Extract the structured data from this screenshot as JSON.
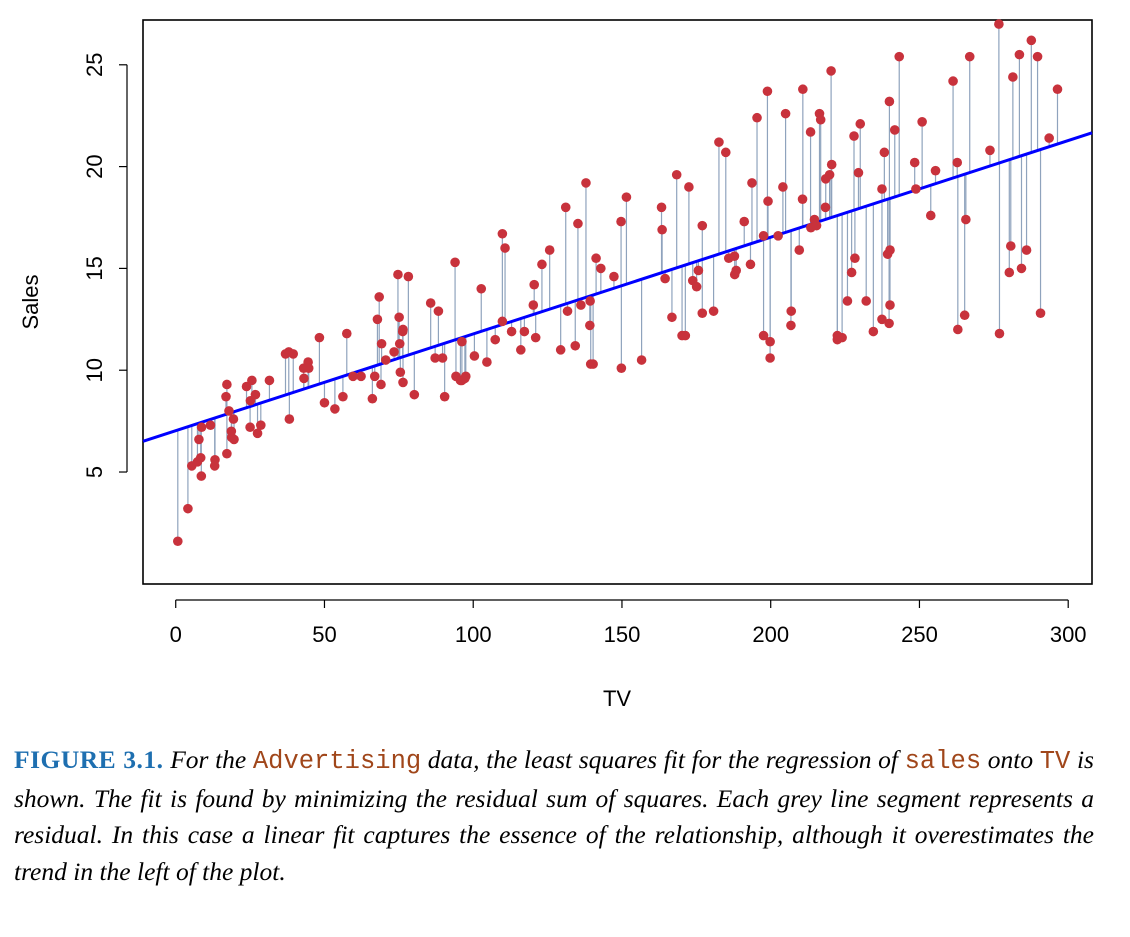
{
  "chart_data": {
    "type": "scatter",
    "xlabel": "TV",
    "ylabel": "Sales",
    "xlim": [
      -11,
      308
    ],
    "ylim": [
      -0.5,
      27.2
    ],
    "xticks": [
      0,
      50,
      100,
      150,
      200,
      250,
      300
    ],
    "yticks": [
      5,
      10,
      15,
      20,
      25
    ],
    "fit_line": {
      "intercept": 7.03,
      "slope": 0.0475
    },
    "colors": {
      "points": "#c8323c",
      "fit_line": "#0000ff",
      "residuals": "#8fa3bd"
    },
    "points": [
      [
        0.7,
        1.6
      ],
      [
        4.1,
        3.2
      ],
      [
        5.4,
        5.3
      ],
      [
        7.3,
        5.5
      ],
      [
        7.8,
        6.6
      ],
      [
        8.4,
        5.7
      ],
      [
        8.6,
        4.8
      ],
      [
        8.7,
        7.2
      ],
      [
        11.7,
        7.3
      ],
      [
        13.1,
        5.3
      ],
      [
        13.2,
        5.6
      ],
      [
        16.9,
        8.7
      ],
      [
        17.2,
        5.9
      ],
      [
        17.2,
        9.3
      ],
      [
        17.9,
        8.0
      ],
      [
        18.7,
        7.0
      ],
      [
        18.8,
        6.7
      ],
      [
        19.4,
        7.6
      ],
      [
        19.6,
        6.6
      ],
      [
        23.8,
        9.2
      ],
      [
        25.0,
        7.2
      ],
      [
        25.1,
        8.5
      ],
      [
        25.6,
        9.5
      ],
      [
        26.8,
        8.8
      ],
      [
        27.5,
        6.9
      ],
      [
        28.6,
        7.3
      ],
      [
        31.5,
        9.5
      ],
      [
        36.9,
        10.8
      ],
      [
        38.0,
        10.9
      ],
      [
        38.2,
        7.6
      ],
      [
        39.5,
        10.8
      ],
      [
        43.0,
        10.1
      ],
      [
        43.1,
        9.6
      ],
      [
        44.5,
        10.4
      ],
      [
        44.7,
        10.1
      ],
      [
        48.3,
        11.6
      ],
      [
        50.0,
        8.4
      ],
      [
        53.5,
        8.1
      ],
      [
        56.2,
        8.7
      ],
      [
        57.5,
        11.8
      ],
      [
        59.6,
        9.7
      ],
      [
        62.3,
        9.7
      ],
      [
        66.1,
        8.6
      ],
      [
        66.9,
        9.7
      ],
      [
        67.8,
        12.5
      ],
      [
        68.4,
        13.6
      ],
      [
        69.0,
        9.3
      ],
      [
        69.2,
        11.3
      ],
      [
        70.6,
        10.5
      ],
      [
        73.4,
        10.9
      ],
      [
        74.7,
        14.7
      ],
      [
        75.1,
        12.6
      ],
      [
        75.3,
        11.3
      ],
      [
        75.5,
        9.9
      ],
      [
        76.3,
        11.9
      ],
      [
        76.4,
        9.4
      ],
      [
        76.4,
        12.0
      ],
      [
        78.2,
        14.6
      ],
      [
        80.2,
        8.8
      ],
      [
        85.7,
        13.3
      ],
      [
        87.2,
        10.6
      ],
      [
        88.3,
        12.9
      ],
      [
        89.7,
        10.6
      ],
      [
        90.4,
        8.7
      ],
      [
        93.9,
        15.3
      ],
      [
        94.2,
        9.7
      ],
      [
        95.7,
        9.5
      ],
      [
        96.2,
        11.4
      ],
      [
        96.2,
        9.5
      ],
      [
        97.2,
        9.6
      ],
      [
        97.5,
        9.7
      ],
      [
        100.4,
        10.7
      ],
      [
        102.7,
        14.0
      ],
      [
        104.6,
        10.4
      ],
      [
        107.4,
        11.5
      ],
      [
        109.8,
        12.4
      ],
      [
        109.8,
        16.7
      ],
      [
        110.7,
        16.0
      ],
      [
        112.9,
        11.9
      ],
      [
        116.0,
        11.0
      ],
      [
        117.2,
        11.9
      ],
      [
        120.2,
        13.2
      ],
      [
        120.5,
        14.2
      ],
      [
        121.0,
        11.6
      ],
      [
        123.1,
        15.2
      ],
      [
        125.7,
        15.9
      ],
      [
        129.4,
        11.0
      ],
      [
        131.1,
        18.0
      ],
      [
        131.7,
        12.9
      ],
      [
        134.3,
        11.2
      ],
      [
        135.2,
        17.2
      ],
      [
        136.2,
        13.2
      ],
      [
        137.9,
        19.2
      ],
      [
        139.2,
        12.2
      ],
      [
        139.3,
        13.4
      ],
      [
        139.5,
        10.3
      ],
      [
        140.3,
        10.3
      ],
      [
        141.3,
        15.5
      ],
      [
        142.9,
        15.0
      ],
      [
        147.3,
        14.6
      ],
      [
        149.7,
        17.3
      ],
      [
        149.8,
        10.1
      ],
      [
        151.5,
        18.5
      ],
      [
        156.6,
        10.5
      ],
      [
        163.3,
        18.0
      ],
      [
        163.5,
        16.9
      ],
      [
        164.5,
        14.5
      ],
      [
        166.8,
        12.6
      ],
      [
        168.4,
        19.6
      ],
      [
        170.2,
        11.7
      ],
      [
        171.3,
        11.7
      ],
      [
        172.5,
        19.0
      ],
      [
        173.8,
        14.4
      ],
      [
        175.1,
        14.1
      ],
      [
        175.7,
        14.9
      ],
      [
        177.0,
        12.8
      ],
      [
        177.0,
        17.1
      ],
      [
        180.8,
        12.9
      ],
      [
        182.6,
        21.2
      ],
      [
        184.9,
        20.7
      ],
      [
        185.9,
        15.5
      ],
      [
        187.8,
        15.6
      ],
      [
        187.9,
        14.7
      ],
      [
        188.4,
        14.9
      ],
      [
        191.1,
        17.3
      ],
      [
        193.2,
        15.2
      ],
      [
        193.7,
        19.2
      ],
      [
        195.4,
        22.4
      ],
      [
        197.6,
        16.6
      ],
      [
        197.6,
        11.7
      ],
      [
        198.9,
        23.7
      ],
      [
        199.1,
        18.3
      ],
      [
        199.8,
        10.6
      ],
      [
        199.8,
        11.4
      ],
      [
        202.5,
        16.6
      ],
      [
        204.1,
        19.0
      ],
      [
        205.0,
        22.6
      ],
      [
        206.8,
        12.2
      ],
      [
        206.9,
        12.9
      ],
      [
        209.6,
        15.9
      ],
      [
        210.7,
        18.4
      ],
      [
        210.8,
        23.8
      ],
      [
        213.4,
        21.7
      ],
      [
        213.5,
        17.0
      ],
      [
        214.7,
        17.4
      ],
      [
        215.4,
        17.1
      ],
      [
        216.4,
        22.6
      ],
      [
        216.8,
        22.3
      ],
      [
        218.4,
        18.0
      ],
      [
        218.5,
        19.4
      ],
      [
        219.8,
        19.6
      ],
      [
        220.3,
        24.7
      ],
      [
        220.5,
        20.1
      ],
      [
        222.4,
        11.7
      ],
      [
        222.4,
        11.5
      ],
      [
        224.0,
        11.6
      ],
      [
        225.8,
        13.4
      ],
      [
        227.2,
        14.8
      ],
      [
        228.0,
        21.5
      ],
      [
        228.3,
        15.5
      ],
      [
        229.5,
        19.7
      ],
      [
        230.1,
        22.1
      ],
      [
        232.1,
        13.4
      ],
      [
        234.5,
        11.9
      ],
      [
        237.4,
        18.9
      ],
      [
        237.4,
        12.5
      ],
      [
        238.2,
        20.7
      ],
      [
        239.3,
        15.7
      ],
      [
        239.8,
        12.3
      ],
      [
        239.9,
        23.2
      ],
      [
        240.1,
        13.2
      ],
      [
        240.1,
        15.9
      ],
      [
        241.7,
        21.8
      ],
      [
        243.2,
        25.4
      ],
      [
        248.4,
        20.2
      ],
      [
        248.8,
        18.9
      ],
      [
        250.9,
        22.2
      ],
      [
        253.8,
        17.6
      ],
      [
        255.4,
        19.8
      ],
      [
        261.3,
        24.2
      ],
      [
        262.7,
        20.2
      ],
      [
        262.9,
        12.0
      ],
      [
        265.2,
        12.7
      ],
      [
        265.6,
        17.4
      ],
      [
        266.9,
        25.4
      ],
      [
        273.7,
        20.8
      ],
      [
        276.7,
        27.0
      ],
      [
        276.9,
        11.8
      ],
      [
        280.2,
        14.8
      ],
      [
        280.7,
        16.1
      ],
      [
        281.4,
        24.4
      ],
      [
        283.6,
        25.5
      ],
      [
        284.3,
        15.0
      ],
      [
        286.0,
        15.9
      ],
      [
        287.6,
        26.2
      ],
      [
        289.7,
        25.4
      ],
      [
        290.7,
        12.8
      ],
      [
        293.6,
        21.4
      ],
      [
        296.4,
        23.8
      ]
    ]
  },
  "caption": {
    "label": "FIGURE 3.1.",
    "t1": " For the ",
    "code1": "Advertising",
    "t2": " data, the least squares fit for the regression of ",
    "code2": "sales",
    "t3": " onto ",
    "code3": "TV",
    "t4": " is shown. The fit is found by minimizing the residual sum of squares. Each grey line segment represents a residual. In this case a linear fit captures the essence of the relationship, although it overestimates the trend in the left of the plot."
  }
}
